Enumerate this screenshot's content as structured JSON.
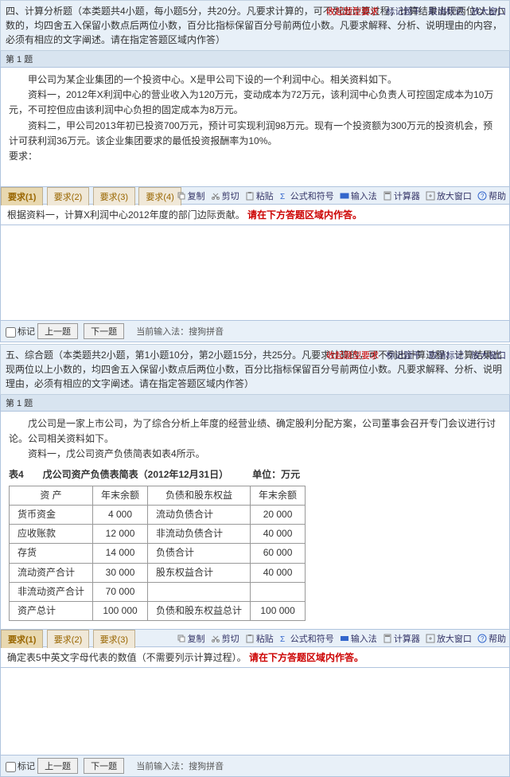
{
  "section4": {
    "header": "四、计算分析题（本类题共4小题，每小题5分，共20分。凡要求计算的，可不列出计算过程；计算结果出现两位以上小数的，均四舍五入保留小数点后两位小数，百分比指标保留百分号前两位小数。凡要求解释、分析、说明理由的内容，必须有相应的文字阐述。请在指定答题区域内作答）",
    "tools": {
      "collapse": "收起题型要求",
      "mark": "标记题干",
      "cancel": "取消标记",
      "enlarge": "放大窗口"
    },
    "q1_label": "第 1 题",
    "body_p1": "甲公司为某企业集团的一个投资中心。X是甲公司下设的一个利润中心。相关资料如下。",
    "body_p2": "资料一，2012年X利润中心的营业收入为120万元，变动成本为72万元，该利润中心负责人可控固定成本为10万元，不可控但应由该利润中心负担的固定成本为8万元。",
    "body_p3": "资料二，甲公司2013年初已投资700万元，预计可实现利润98万元。现有一个投资额为300万元的投资机会，预计可获利润36万元。该企业集团要求的最低投资报酬率为10%。",
    "body_p4": "要求：",
    "tabs": [
      "要求(1)",
      "要求(2)",
      "要求(3)",
      "要求(4)"
    ],
    "toolbar": {
      "copy": "复制",
      "cut": "剪切",
      "paste": "粘贴",
      "formula": "公式和符号",
      "input": "输入法",
      "calc": "计算器",
      "enlarge": "放大窗口",
      "help": "帮助"
    },
    "prompt_pre": "根据资料一，计算X利润中心2012年度的部门边际贡献。",
    "prompt_red": "请在下方答题区域内作答。",
    "bottom": {
      "mark": "标记",
      "prev": "上一题",
      "next": "下一题",
      "ime": "当前输入法：搜狗拼音"
    }
  },
  "section5": {
    "header": "五、综合题（本类题共2小题，第1小题10分，第2小题15分，共25分。凡要求计算的，可不列出计算过程；计算结果出现两位以上小数的，均四舍五入保留小数点后两位小数，百分比指标保留百分号前两位小数。凡要求解释、分析、说明理由，必须有相应的文字阐述。请在指定答题区域内作答）",
    "tools": {
      "collapse": "收起题型要求",
      "mark": "标记题干",
      "cancel": "取消标记",
      "enlarge": "放大窗口"
    },
    "q1_label": "第 1 题",
    "body_p1": "戊公司是一家上市公司，为了综合分析上年度的经营业绩、确定股利分配方案，公司董事会召开专门会议进行讨论。公司相关资料如下。",
    "body_p2": "资料一，戊公司资产负债简表如表4所示。",
    "tbl_title": "表4　　戊公司资产负债表简表（2012年12月31日）　　　单位：万元",
    "table": {
      "headers": [
        "资 产",
        "年末余额",
        "负债和股东权益",
        "年末余额"
      ],
      "rows": [
        [
          "货币资金",
          "4 000",
          "流动负债合计",
          "20 000"
        ],
        [
          "应收账款",
          "12 000",
          "非流动负债合计",
          "40 000"
        ],
        [
          "存货",
          "14 000",
          "负债合计",
          "60 000"
        ],
        [
          "流动资产合计",
          "30 000",
          "股东权益合计",
          "40 000"
        ],
        [
          "非流动资产合计",
          "70 000",
          "",
          ""
        ],
        [
          "资产总计",
          "100 000",
          "负债和股东权益总计",
          "100 000"
        ]
      ]
    },
    "tabs": [
      "要求(1)",
      "要求(2)",
      "要求(3)"
    ],
    "toolbar": {
      "copy": "复制",
      "cut": "剪切",
      "paste": "粘贴",
      "formula": "公式和符号",
      "input": "输入法",
      "calc": "计算器",
      "enlarge": "放大窗口",
      "help": "帮助"
    },
    "prompt_pre": "确定表5中英文字母代表的数值（不需要列示计算过程）。",
    "prompt_red": "请在下方答题区域内作答。",
    "bottom": {
      "mark": "标记",
      "prev": "上一题",
      "next": "下一题",
      "ime": "当前输入法：搜狗拼音"
    }
  },
  "colors": {
    "header_bg": "#e8f0f8",
    "border": "#b0c4de",
    "tab_bg": "#f0e8d8",
    "red": "#c00"
  }
}
